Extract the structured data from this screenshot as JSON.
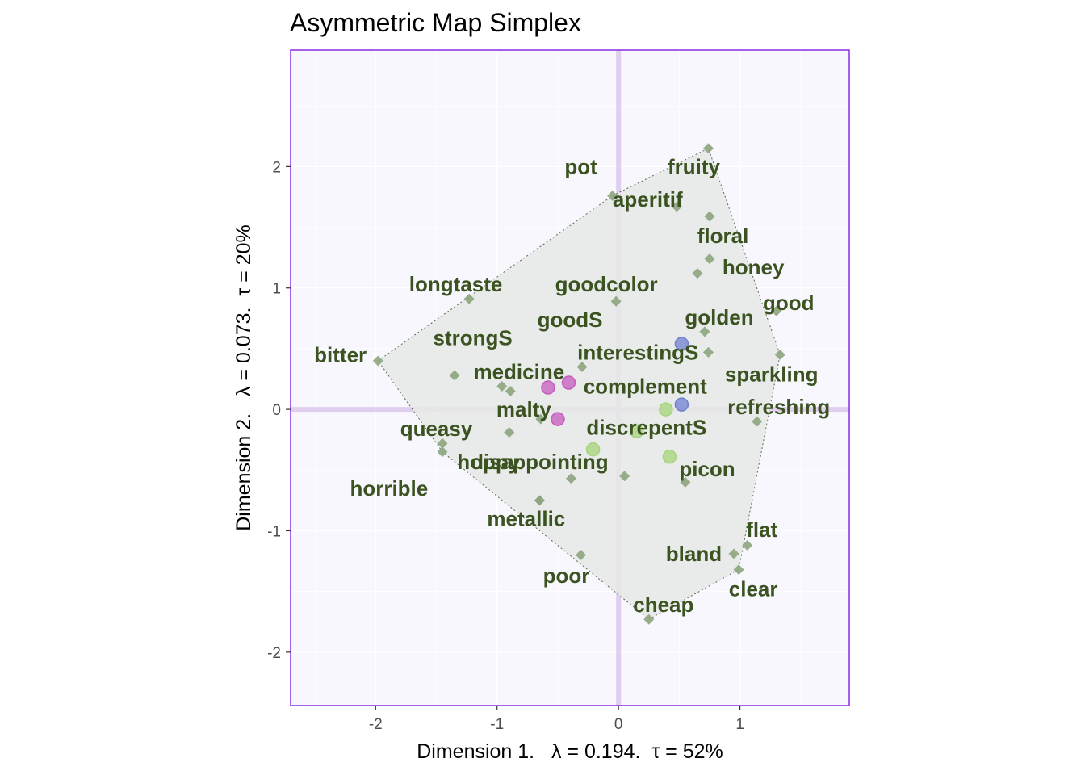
{
  "chart_data": {
    "type": "scatter",
    "title": "Asymmetric Map Simplex",
    "xlabel": "Dimension 1.   λ = 0.194.  τ = 52%",
    "ylabel": "Dimension 2.   λ = 0.073.  τ = 20%",
    "xlim": [
      -2.7,
      1.9
    ],
    "ylim": [
      -2.44,
      2.96
    ],
    "xticks": [
      -2,
      -1,
      0,
      1
    ],
    "yticks": [
      -2,
      -1,
      0,
      1,
      2
    ],
    "xtick_labels": [
      "-2",
      "-1",
      "0",
      "1"
    ],
    "ytick_labels": [
      "-2",
      "-1",
      "0",
      "1",
      "2"
    ],
    "grid": true,
    "legend": "none",
    "colors": {
      "panel_background": "#f8f7fe",
      "panel_border": "#8a2be2",
      "reference_lines": "#dcc8ec",
      "hull_fill": "#e6e9e6",
      "attribute_markers": "#8da57e",
      "labels": "#3b5320",
      "series_magenta": "#c55bbd",
      "series_green": "#a6d479",
      "series_blue": "#7080cf"
    },
    "hull": [
      [
        -1.98,
        0.4
      ],
      [
        -0.05,
        1.76
      ],
      [
        0.74,
        2.15
      ],
      [
        1.33,
        0.45
      ],
      [
        0.99,
        -1.32
      ],
      [
        0.25,
        -1.73
      ],
      [
        -1.45,
        -0.35
      ]
    ],
    "attributes": [
      {
        "label": "pot",
        "x": -0.05,
        "y": 1.76,
        "lx": -0.31,
        "ly": 2.0
      },
      {
        "label": "fruity",
        "x": 0.74,
        "y": 2.15,
        "lx": 0.62,
        "ly": 2.0
      },
      {
        "label": "aperitif",
        "x": 0.48,
        "y": 1.67,
        "lx": 0.24,
        "ly": 1.73
      },
      {
        "label": "floral",
        "x": 0.75,
        "y": 1.59,
        "lx": 0.86,
        "ly": 1.43
      },
      {
        "label": "honey",
        "x": 0.75,
        "y": 1.24,
        "lx": 1.11,
        "ly": 1.17
      },
      {
        "label": "goodcolor",
        "x": 0.65,
        "y": 1.12,
        "lx": -0.1,
        "ly": 1.03
      },
      {
        "label": "good",
        "x": 1.3,
        "y": 0.81,
        "lx": 1.4,
        "ly": 0.88
      },
      {
        "label": "longtaste",
        "x": -1.23,
        "y": 0.91,
        "lx": -1.34,
        "ly": 1.03
      },
      {
        "label": "goodS",
        "x": -0.02,
        "y": 0.89,
        "lx": -0.4,
        "ly": 0.74
      },
      {
        "label": "golden",
        "x": 0.71,
        "y": 0.64,
        "lx": 0.83,
        "ly": 0.76
      },
      {
        "label": "strongS",
        "x": -1.35,
        "y": 0.28,
        "lx": -1.2,
        "ly": 0.59
      },
      {
        "label": "interestingS",
        "x": 0.74,
        "y": 0.47,
        "lx": 0.16,
        "ly": 0.47
      },
      {
        "label": "bitter",
        "x": -1.98,
        "y": 0.4,
        "lx": -2.29,
        "ly": 0.45
      },
      {
        "label": "sparkling",
        "x": 1.33,
        "y": 0.45,
        "lx": 1.26,
        "ly": 0.29
      },
      {
        "label": "medicine",
        "x": -0.3,
        "y": 0.35,
        "lx": -0.82,
        "ly": 0.31
      },
      {
        "label": "complement",
        "x": -0.96,
        "y": 0.19,
        "lx": 0.22,
        "ly": 0.19
      },
      {
        "label": "malty",
        "x": -0.89,
        "y": 0.15,
        "lx": -0.78,
        "ly": 0.0
      },
      {
        "label": "refreshing",
        "x": 1.14,
        "y": -0.1,
        "lx": 1.32,
        "ly": 0.02
      },
      {
        "label": "discrepentS",
        "x": -0.64,
        "y": -0.08,
        "lx": 0.23,
        "ly": -0.15
      },
      {
        "label": "queasy",
        "x": -0.9,
        "y": -0.19,
        "lx": -1.5,
        "ly": -0.16
      },
      {
        "label": "hoppy",
        "x": -1.45,
        "y": -0.28,
        "lx": -1.07,
        "ly": -0.43
      },
      {
        "label": "disappointing",
        "x": -1.45,
        "y": -0.35,
        "lx": -0.65,
        "ly": -0.43
      },
      {
        "label": "",
        "x": -0.39,
        "y": -0.57
      },
      {
        "label": "",
        "x": 0.05,
        "y": -0.55
      },
      {
        "label": "picon",
        "x": 0.55,
        "y": -0.6,
        "lx": 0.73,
        "ly": -0.49
      },
      {
        "label": "horrible",
        "x": -0.65,
        "y": -0.75,
        "lx": -1.89,
        "ly": -0.65
      },
      {
        "label": "metallic",
        "x": -0.65,
        "y": -0.75,
        "lx": -0.76,
        "ly": -0.9
      },
      {
        "label": "flat",
        "x": 1.06,
        "y": -1.12,
        "lx": 1.18,
        "ly": -0.99
      },
      {
        "label": "bland",
        "x": 0.95,
        "y": -1.19,
        "lx": 0.62,
        "ly": -1.19
      },
      {
        "label": "poor",
        "x": -0.31,
        "y": -1.2,
        "lx": -0.43,
        "ly": -1.37
      },
      {
        "label": "clear",
        "x": 0.99,
        "y": -1.32,
        "lx": 1.11,
        "ly": -1.48
      },
      {
        "label": "cheap",
        "x": 0.25,
        "y": -1.73,
        "lx": 0.37,
        "ly": -1.61
      }
    ],
    "series": [
      {
        "color": "#c55bbd",
        "points": [
          [
            -0.58,
            0.18
          ],
          [
            -0.41,
            0.22
          ],
          [
            -0.5,
            -0.08
          ]
        ]
      },
      {
        "color": "#a6d479",
        "points": [
          [
            0.39,
            0.0
          ],
          [
            0.15,
            -0.18
          ],
          [
            -0.21,
            -0.33
          ],
          [
            0.42,
            -0.39
          ]
        ]
      },
      {
        "color": "#7080cf",
        "points": [
          [
            0.52,
            0.54
          ],
          [
            0.52,
            0.04
          ]
        ]
      }
    ]
  }
}
